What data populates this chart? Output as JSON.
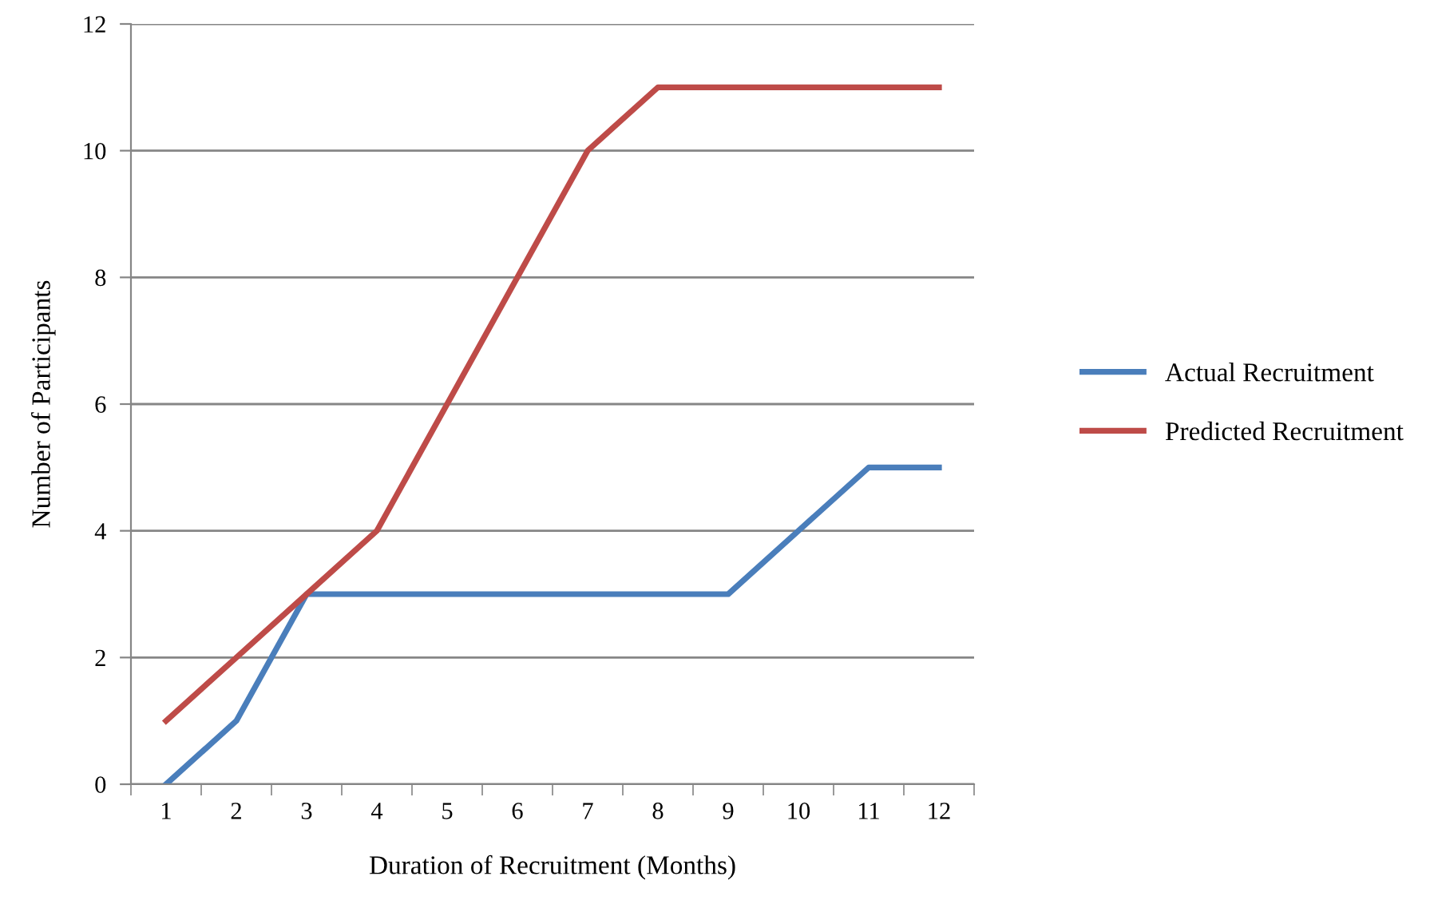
{
  "chart_data": {
    "type": "line",
    "xlabel": "Duration of Recruitment (Months)",
    "ylabel": "Number of Participants",
    "categories": [
      "1",
      "2",
      "3",
      "4",
      "5",
      "6",
      "7",
      "8",
      "9",
      "10",
      "11",
      "12"
    ],
    "series": [
      {
        "name": "Actual Recruitment",
        "color": "#4a7ebb",
        "values": [
          0,
          1,
          3,
          3,
          3,
          3,
          3,
          3,
          3,
          4,
          5,
          5
        ]
      },
      {
        "name": "Predicted Recruitment",
        "color": "#be4b48",
        "values": [
          1,
          2,
          3,
          4,
          6,
          8,
          10,
          11,
          11,
          11,
          11,
          11
        ]
      }
    ],
    "ylim": [
      0,
      12
    ],
    "yticks": [
      0,
      2,
      4,
      6,
      8,
      10,
      12
    ],
    "grid": "y",
    "legend": "right",
    "marker": "none",
    "line_style": "solid"
  }
}
